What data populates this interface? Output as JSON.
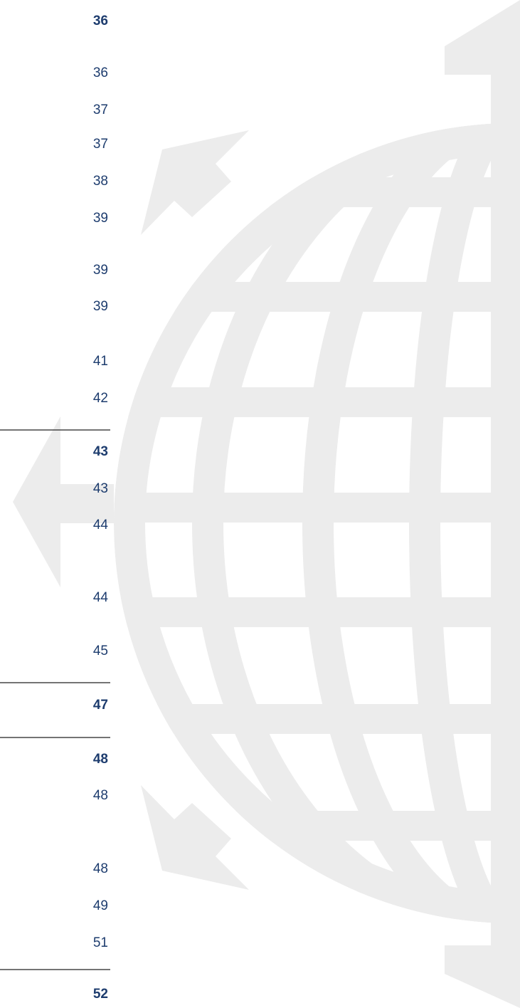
{
  "entries": [
    {
      "page": "36",
      "bold": true
    },
    {
      "page": "36",
      "bold": false
    },
    {
      "page": "37",
      "bold": false
    },
    {
      "page": "37",
      "bold": false
    },
    {
      "page": "38",
      "bold": false
    },
    {
      "page": "39",
      "bold": false
    },
    {
      "page": "39",
      "bold": false
    },
    {
      "page": "39",
      "bold": false
    },
    {
      "page": "41",
      "bold": false
    },
    {
      "page": "42",
      "bold": false
    },
    {
      "page": "43",
      "bold": true
    },
    {
      "page": "43",
      "bold": false
    },
    {
      "page": "44",
      "bold": false
    },
    {
      "page": "44",
      "bold": false
    },
    {
      "page": "45",
      "bold": false
    },
    {
      "page": "47",
      "bold": true
    },
    {
      "page": "48",
      "bold": true
    },
    {
      "page": "48",
      "bold": false
    },
    {
      "page": "48",
      "bold": false
    },
    {
      "page": "49",
      "bold": false
    },
    {
      "page": "51",
      "bold": false
    },
    {
      "page": "52",
      "bold": true
    }
  ]
}
